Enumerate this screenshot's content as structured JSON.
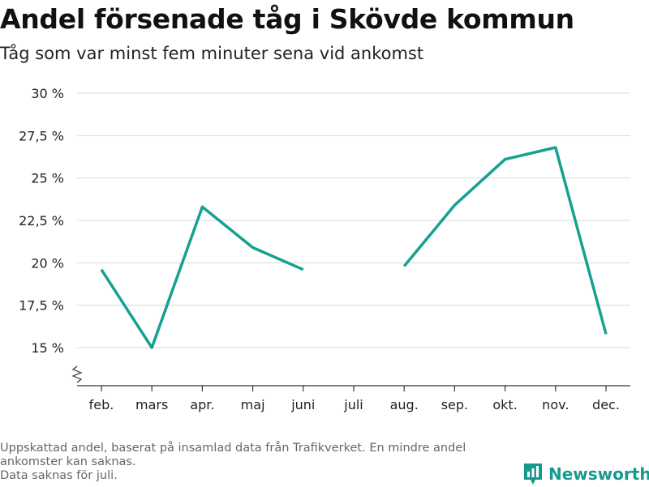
{
  "header": {
    "title": "Andel försenade tåg i Skövde kommun",
    "subtitle": "Tåg som var minst fem minuter sena vid ankomst"
  },
  "chart_data": {
    "type": "line",
    "title": "Andel försenade tåg i Skövde kommun",
    "subtitle": "Tåg som var minst fem minuter sena vid ankomst",
    "categories": [
      "feb.",
      "mars",
      "apr.",
      "maj",
      "juni",
      "juli",
      "aug.",
      "sep.",
      "okt.",
      "nov.",
      "dec."
    ],
    "series": [
      {
        "values": [
          19.6,
          15.0,
          23.3,
          20.9,
          19.6,
          null,
          19.8,
          23.4,
          26.1,
          26.8,
          15.8
        ]
      }
    ],
    "y_ticks": [
      15,
      17.5,
      20,
      22.5,
      25,
      27.5,
      30
    ],
    "y_tick_labels": [
      "15 %",
      "17,5 %",
      "20 %",
      "22,5 %",
      "25 %",
      "27,5 %",
      "30 %"
    ],
    "ylim": [
      15,
      30
    ],
    "y_axis_break": true,
    "grid": true,
    "line_color": "#18a091",
    "xlabel": "",
    "ylabel": ""
  },
  "footnote": {
    "line1": "Uppskattad andel, baserat på insamlad data från Trafikverket. En mindre andel",
    "line2": "ankomster kan saknas.",
    "line3": "Data saknas för juli."
  },
  "brand": {
    "name": "Newsworthy",
    "icon": "bar-chart-logo-icon",
    "color": "#18998f"
  }
}
